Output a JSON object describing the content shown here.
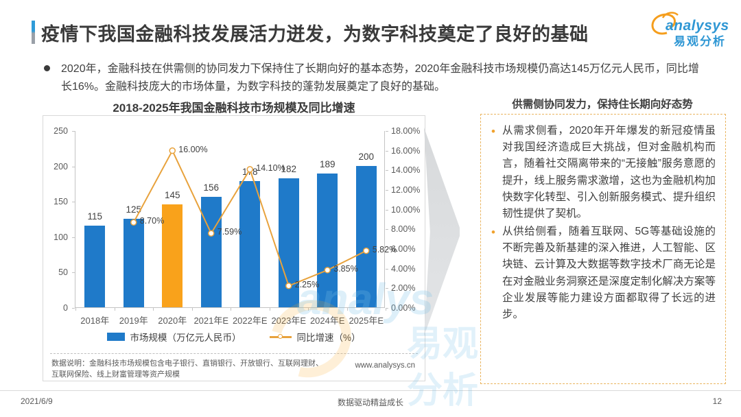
{
  "header": {
    "title": "疫情下我国金融科技发展活力迸发，为数字科技奠定了良好的基础",
    "logo": {
      "brand_en": "analysys",
      "brand_cn": "易观分析"
    }
  },
  "summary": {
    "bullet": "2020年，金融科技在供需侧的协同发力下保持住了长期向好的基本态势，2020年金融科技市场规模仍高达145万亿元人民币，同比增长16%。金融科技庞大的市场体量，为数字科技的蓬勃发展奠定了良好的基础。"
  },
  "chart_data": {
    "type": "bar+line",
    "title": "2018-2025年我国金融科技市场规模及同比增速",
    "categories": [
      "2018年",
      "2019年",
      "2020年",
      "2021年E",
      "2022年E",
      "2023年E",
      "2024年E",
      "2025年E"
    ],
    "series": [
      {
        "name": "市场规模（万亿元人民币）",
        "type": "bar",
        "values": [
          115,
          125,
          145,
          156,
          178,
          182,
          189,
          200
        ],
        "highlight_index": 2
      },
      {
        "name": "同比增速（%）",
        "type": "line",
        "values": [
          null,
          8.7,
          16.0,
          7.59,
          14.1,
          2.25,
          3.85,
          5.82
        ],
        "labels": [
          null,
          "8.70%",
          "16.00%",
          "7.59%",
          "14.10%",
          "2.25%",
          "3.85%",
          "5.82%"
        ]
      }
    ],
    "left_axis": {
      "ticks": [
        "250",
        "200",
        "150",
        "100",
        "50",
        "0"
      ],
      "min": 0,
      "max": 250
    },
    "right_axis": {
      "ticks": [
        "18.00%",
        "16.00%",
        "14.00%",
        "12.00%",
        "10.00%",
        "8.00%",
        "6.00%",
        "4.00%",
        "2.00%",
        "0.00%"
      ],
      "min": 0,
      "max": 18
    },
    "colors": {
      "bar": "#1f7ac9",
      "bar_highlight": "#f9a21b",
      "line": "#e8a23c"
    },
    "legend_position": "bottom",
    "grid": false,
    "note": "数据说明：金融科技市场规模包含电子银行、直销银行、开放银行、互联网理财、互联网保险、线上财富管理等资产规模",
    "source_url": "www.analysys.cn"
  },
  "insight_panel": {
    "title": "供需侧协同发力，保持住长期向好态势",
    "bullets": [
      "从需求侧看，2020年开年爆发的新冠疫情虽对我国经济造成巨大挑战，但对金融机构而言，随着社交隔离带来的“无接触”服务意愿的提升，线上服务需求激增，这也为金融机构加快数字化转型、引入创新服务模式、提升组织韧性提供了契机。",
      "从供给侧看，随着互联网、5G等基础设施的不断完善及新基建的深入推进，人工智能、区块链、云计算及大数据等数字技术厂商无论是在对金融业务洞察还是深度定制化解决方案等企业发展等能力建设方面都取得了长远的进步。"
    ]
  },
  "footer": {
    "date": "2021/6/9",
    "slogan": "数据驱动精益成长",
    "page": "12"
  }
}
